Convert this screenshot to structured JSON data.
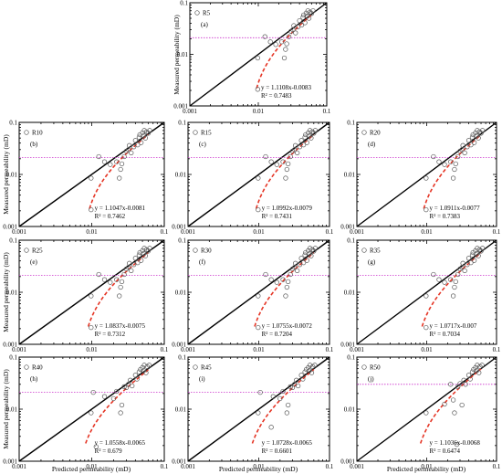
{
  "figure": {
    "xlabel": "Predicted permeability (mD)",
    "ylabel": "Measured permeability (mD)"
  },
  "chart_data": [
    {
      "type": "scatter",
      "legend": "R5",
      "panel": "(a)",
      "equation": "y = 1.1108x-0.0083",
      "r2": "R² = 0.7483",
      "xlim": [
        0.001,
        0.1
      ],
      "ylim": [
        0.001,
        0.1
      ],
      "x_scale": "log",
      "y_scale": "log",
      "x_ticks": [
        "0.001",
        "0.01",
        "0.1"
      ],
      "y_ticks": [
        "0.001",
        "0.01",
        "0.1"
      ],
      "threshold_y": 0.021,
      "fit": {
        "slope": 1.1108,
        "intercept": -0.0083
      },
      "points": [
        [
          0.0098,
          0.0021
        ],
        [
          0.0098,
          0.0085
        ],
        [
          0.0125,
          0.022
        ],
        [
          0.015,
          0.0175
        ],
        [
          0.018,
          0.0155
        ],
        [
          0.022,
          0.0175
        ],
        [
          0.024,
          0.0085
        ],
        [
          0.025,
          0.0125
        ],
        [
          0.026,
          0.016
        ],
        [
          0.028,
          0.022
        ],
        [
          0.03,
          0.028
        ],
        [
          0.032,
          0.03
        ],
        [
          0.033,
          0.036
        ],
        [
          0.035,
          0.026
        ],
        [
          0.038,
          0.034
        ],
        [
          0.04,
          0.045
        ],
        [
          0.043,
          0.037
        ],
        [
          0.045,
          0.052
        ],
        [
          0.046,
          0.058
        ],
        [
          0.048,
          0.041
        ],
        [
          0.05,
          0.063
        ],
        [
          0.052,
          0.055
        ],
        [
          0.053,
          0.07
        ],
        [
          0.055,
          0.05
        ],
        [
          0.057,
          0.066
        ],
        [
          0.06,
          0.062
        ],
        [
          0.063,
          0.07
        ]
      ]
    },
    {
      "type": "scatter",
      "legend": "R10",
      "panel": "(b)",
      "equation": "y = 1.1047x-0.0081",
      "r2": "R² = 0.7462",
      "xlim": [
        0.001,
        0.1
      ],
      "ylim": [
        0.001,
        0.1
      ],
      "x_scale": "log",
      "y_scale": "log",
      "x_ticks": [
        "0.001",
        "0.01",
        "0.1"
      ],
      "y_ticks": [
        "0.001",
        "0.01",
        "0.1"
      ],
      "threshold_y": 0.021,
      "fit": {
        "slope": 1.1047,
        "intercept": -0.0081
      },
      "points": [
        [
          0.0098,
          0.0021
        ],
        [
          0.0098,
          0.0085
        ],
        [
          0.0125,
          0.022
        ],
        [
          0.015,
          0.0175
        ],
        [
          0.018,
          0.0155
        ],
        [
          0.022,
          0.0175
        ],
        [
          0.024,
          0.0085
        ],
        [
          0.025,
          0.0125
        ],
        [
          0.026,
          0.016
        ],
        [
          0.028,
          0.022
        ],
        [
          0.03,
          0.028
        ],
        [
          0.032,
          0.03
        ],
        [
          0.033,
          0.036
        ],
        [
          0.035,
          0.026
        ],
        [
          0.038,
          0.034
        ],
        [
          0.04,
          0.045
        ],
        [
          0.043,
          0.037
        ],
        [
          0.045,
          0.052
        ],
        [
          0.046,
          0.058
        ],
        [
          0.048,
          0.041
        ],
        [
          0.05,
          0.063
        ],
        [
          0.052,
          0.055
        ],
        [
          0.053,
          0.07
        ],
        [
          0.055,
          0.05
        ],
        [
          0.057,
          0.066
        ],
        [
          0.06,
          0.062
        ],
        [
          0.063,
          0.07
        ]
      ]
    },
    {
      "type": "scatter",
      "legend": "R15",
      "panel": "(c)",
      "equation": "y = 1.0992x-0.0079",
      "r2": "R² = 0.7431",
      "xlim": [
        0.001,
        0.1
      ],
      "ylim": [
        0.001,
        0.1
      ],
      "x_scale": "log",
      "y_scale": "log",
      "x_ticks": [
        "0.001",
        "0.01",
        "0.1"
      ],
      "y_ticks": [
        "0.001",
        "0.01",
        "0.1"
      ],
      "threshold_y": 0.021,
      "fit": {
        "slope": 1.0992,
        "intercept": -0.0079
      },
      "points": [
        [
          0.0098,
          0.0021
        ],
        [
          0.0098,
          0.0085
        ],
        [
          0.0125,
          0.022
        ],
        [
          0.015,
          0.0175
        ],
        [
          0.018,
          0.0155
        ],
        [
          0.022,
          0.0175
        ],
        [
          0.024,
          0.0085
        ],
        [
          0.025,
          0.0125
        ],
        [
          0.026,
          0.016
        ],
        [
          0.028,
          0.022
        ],
        [
          0.03,
          0.028
        ],
        [
          0.032,
          0.03
        ],
        [
          0.033,
          0.036
        ],
        [
          0.035,
          0.026
        ],
        [
          0.038,
          0.034
        ],
        [
          0.04,
          0.045
        ],
        [
          0.043,
          0.037
        ],
        [
          0.045,
          0.052
        ],
        [
          0.046,
          0.058
        ],
        [
          0.048,
          0.041
        ],
        [
          0.05,
          0.063
        ],
        [
          0.052,
          0.055
        ],
        [
          0.053,
          0.07
        ],
        [
          0.055,
          0.05
        ],
        [
          0.057,
          0.066
        ],
        [
          0.06,
          0.062
        ],
        [
          0.063,
          0.07
        ]
      ]
    },
    {
      "type": "scatter",
      "legend": "R20",
      "panel": "(d)",
      "equation": "y = 1.0911x-0.0077",
      "r2": "R² = 0.7383",
      "xlim": [
        0.001,
        0.1
      ],
      "ylim": [
        0.001,
        0.1
      ],
      "x_scale": "log",
      "y_scale": "log",
      "x_ticks": [
        "0.001",
        "0.01",
        "0.1"
      ],
      "y_ticks": [
        "0.001",
        "0.01",
        "0.1"
      ],
      "threshold_y": 0.021,
      "fit": {
        "slope": 1.0911,
        "intercept": -0.0077
      },
      "points": [
        [
          0.0098,
          0.0021
        ],
        [
          0.0098,
          0.0085
        ],
        [
          0.0125,
          0.022
        ],
        [
          0.015,
          0.0175
        ],
        [
          0.018,
          0.0155
        ],
        [
          0.022,
          0.0175
        ],
        [
          0.024,
          0.0085
        ],
        [
          0.025,
          0.0125
        ],
        [
          0.026,
          0.016
        ],
        [
          0.028,
          0.022
        ],
        [
          0.03,
          0.028
        ],
        [
          0.032,
          0.03
        ],
        [
          0.033,
          0.036
        ],
        [
          0.035,
          0.026
        ],
        [
          0.038,
          0.034
        ],
        [
          0.04,
          0.045
        ],
        [
          0.043,
          0.037
        ],
        [
          0.045,
          0.052
        ],
        [
          0.046,
          0.058
        ],
        [
          0.048,
          0.041
        ],
        [
          0.05,
          0.063
        ],
        [
          0.052,
          0.055
        ],
        [
          0.053,
          0.07
        ],
        [
          0.055,
          0.05
        ],
        [
          0.057,
          0.066
        ],
        [
          0.06,
          0.062
        ],
        [
          0.063,
          0.07
        ]
      ]
    },
    {
      "type": "scatter",
      "legend": "R25",
      "panel": "(e)",
      "equation": "y = 1.0837x-0.0075",
      "r2": "R² = 0.7312",
      "xlim": [
        0.001,
        0.1
      ],
      "ylim": [
        0.001,
        0.1
      ],
      "x_scale": "log",
      "y_scale": "log",
      "x_ticks": [
        "0.001",
        "0.01",
        "0.1"
      ],
      "y_ticks": [
        "0.001",
        "0.01",
        "0.1"
      ],
      "threshold_y": 0.021,
      "fit": {
        "slope": 1.0837,
        "intercept": -0.0075
      },
      "points": [
        [
          0.0098,
          0.0021
        ],
        [
          0.0098,
          0.0085
        ],
        [
          0.0125,
          0.022
        ],
        [
          0.015,
          0.0175
        ],
        [
          0.018,
          0.0155
        ],
        [
          0.022,
          0.0175
        ],
        [
          0.024,
          0.0085
        ],
        [
          0.025,
          0.0125
        ],
        [
          0.026,
          0.016
        ],
        [
          0.028,
          0.022
        ],
        [
          0.03,
          0.028
        ],
        [
          0.032,
          0.03
        ],
        [
          0.033,
          0.036
        ],
        [
          0.035,
          0.026
        ],
        [
          0.038,
          0.034
        ],
        [
          0.04,
          0.045
        ],
        [
          0.043,
          0.037
        ],
        [
          0.045,
          0.052
        ],
        [
          0.046,
          0.058
        ],
        [
          0.048,
          0.041
        ],
        [
          0.05,
          0.063
        ],
        [
          0.052,
          0.055
        ],
        [
          0.053,
          0.07
        ],
        [
          0.055,
          0.05
        ],
        [
          0.057,
          0.066
        ],
        [
          0.06,
          0.062
        ],
        [
          0.063,
          0.07
        ]
      ]
    },
    {
      "type": "scatter",
      "legend": "R30",
      "panel": "(f)",
      "equation": "y = 1.0755x-0.0072",
      "r2": "R² = 0.7204",
      "xlim": [
        0.001,
        0.1
      ],
      "ylim": [
        0.001,
        0.1
      ],
      "x_scale": "log",
      "y_scale": "log",
      "x_ticks": [
        "0.001",
        "0.01",
        "0.1"
      ],
      "y_ticks": [
        "0.001",
        "0.01",
        "0.1"
      ],
      "threshold_y": 0.021,
      "fit": {
        "slope": 1.0755,
        "intercept": -0.0072
      },
      "points": [
        [
          0.0098,
          0.0021
        ],
        [
          0.0098,
          0.0085
        ],
        [
          0.0125,
          0.022
        ],
        [
          0.015,
          0.0175
        ],
        [
          0.018,
          0.0155
        ],
        [
          0.022,
          0.0175
        ],
        [
          0.024,
          0.0085
        ],
        [
          0.025,
          0.0125
        ],
        [
          0.026,
          0.016
        ],
        [
          0.028,
          0.022
        ],
        [
          0.03,
          0.028
        ],
        [
          0.032,
          0.03
        ],
        [
          0.033,
          0.036
        ],
        [
          0.035,
          0.026
        ],
        [
          0.038,
          0.034
        ],
        [
          0.04,
          0.045
        ],
        [
          0.043,
          0.037
        ],
        [
          0.045,
          0.052
        ],
        [
          0.046,
          0.058
        ],
        [
          0.048,
          0.041
        ],
        [
          0.05,
          0.063
        ],
        [
          0.052,
          0.055
        ],
        [
          0.053,
          0.07
        ],
        [
          0.055,
          0.05
        ],
        [
          0.057,
          0.066
        ],
        [
          0.06,
          0.062
        ],
        [
          0.063,
          0.07
        ]
      ]
    },
    {
      "type": "scatter",
      "legend": "R35",
      "panel": "(g)",
      "equation": "y = 1.0717x-0.007",
      "r2": "R² = 0.7034",
      "xlim": [
        0.001,
        0.1
      ],
      "ylim": [
        0.001,
        0.1
      ],
      "x_scale": "log",
      "y_scale": "log",
      "x_ticks": [
        "0.001",
        "0.01",
        "0.1"
      ],
      "y_ticks": [
        "0.001",
        "0.01",
        "0.1"
      ],
      "threshold_y": 0.021,
      "fit": {
        "slope": 1.0717,
        "intercept": -0.007
      },
      "points": [
        [
          0.0098,
          0.0021
        ],
        [
          0.0098,
          0.0085
        ],
        [
          0.0125,
          0.022
        ],
        [
          0.015,
          0.0175
        ],
        [
          0.018,
          0.0155
        ],
        [
          0.022,
          0.0175
        ],
        [
          0.024,
          0.0085
        ],
        [
          0.025,
          0.0125
        ],
        [
          0.026,
          0.016
        ],
        [
          0.028,
          0.022
        ],
        [
          0.03,
          0.028
        ],
        [
          0.032,
          0.03
        ],
        [
          0.033,
          0.036
        ],
        [
          0.035,
          0.026
        ],
        [
          0.038,
          0.034
        ],
        [
          0.04,
          0.045
        ],
        [
          0.043,
          0.037
        ],
        [
          0.045,
          0.052
        ],
        [
          0.046,
          0.058
        ],
        [
          0.048,
          0.041
        ],
        [
          0.05,
          0.063
        ],
        [
          0.052,
          0.055
        ],
        [
          0.053,
          0.07
        ],
        [
          0.055,
          0.05
        ],
        [
          0.057,
          0.066
        ],
        [
          0.06,
          0.062
        ],
        [
          0.063,
          0.07
        ]
      ]
    },
    {
      "type": "scatter",
      "legend": "R40",
      "panel": "(h)",
      "equation": "y = 1.0558x-0.0065",
      "r2": "R² = 0.679",
      "xlim": [
        0.001,
        0.1
      ],
      "ylim": [
        0.001,
        0.1
      ],
      "x_scale": "log",
      "y_scale": "log",
      "x_ticks": [
        "0.001",
        "0.01",
        "0.1"
      ],
      "y_ticks": [
        "0.001",
        "0.01",
        "0.1"
      ],
      "threshold_y": 0.021,
      "fit": {
        "slope": 1.0558,
        "intercept": -0.0065
      },
      "points": [
        [
          0.0098,
          0.0085
        ],
        [
          0.0105,
          0.021
        ],
        [
          0.0115,
          0.0019
        ],
        [
          0.015,
          0.0175
        ],
        [
          0.02,
          0.016
        ],
        [
          0.022,
          0.022
        ],
        [
          0.025,
          0.0085
        ],
        [
          0.026,
          0.012
        ],
        [
          0.028,
          0.027
        ],
        [
          0.03,
          0.026
        ],
        [
          0.032,
          0.03
        ],
        [
          0.034,
          0.036
        ],
        [
          0.036,
          0.028
        ],
        [
          0.04,
          0.045
        ],
        [
          0.042,
          0.038
        ],
        [
          0.045,
          0.052
        ],
        [
          0.047,
          0.058
        ],
        [
          0.05,
          0.063
        ],
        [
          0.052,
          0.055
        ],
        [
          0.053,
          0.07
        ],
        [
          0.056,
          0.05
        ],
        [
          0.058,
          0.066
        ],
        [
          0.062,
          0.07
        ]
      ]
    },
    {
      "type": "scatter",
      "legend": "R45",
      "panel": "(i)",
      "equation": "y = 1.0728x-0.0065",
      "r2": "R² = 0.6601",
      "xlim": [
        0.001,
        0.1
      ],
      "ylim": [
        0.001,
        0.1
      ],
      "x_scale": "log",
      "y_scale": "log",
      "x_ticks": [
        "0.001",
        "0.01",
        "0.1"
      ],
      "y_ticks": [
        "0.001",
        "0.01",
        "0.1"
      ],
      "threshold_y": 0.021,
      "fit": {
        "slope": 1.0728,
        "intercept": -0.0065
      },
      "points": [
        [
          0.0098,
          0.0085
        ],
        [
          0.0105,
          0.021
        ],
        [
          0.015,
          0.0045
        ],
        [
          0.016,
          0.0175
        ],
        [
          0.02,
          0.016
        ],
        [
          0.022,
          0.022
        ],
        [
          0.025,
          0.0085
        ],
        [
          0.026,
          0.012
        ],
        [
          0.028,
          0.027
        ],
        [
          0.03,
          0.026
        ],
        [
          0.032,
          0.03
        ],
        [
          0.034,
          0.036
        ],
        [
          0.036,
          0.028
        ],
        [
          0.04,
          0.045
        ],
        [
          0.042,
          0.038
        ],
        [
          0.045,
          0.052
        ],
        [
          0.047,
          0.058
        ],
        [
          0.05,
          0.063
        ],
        [
          0.052,
          0.055
        ],
        [
          0.053,
          0.07
        ],
        [
          0.056,
          0.05
        ],
        [
          0.058,
          0.066
        ],
        [
          0.062,
          0.07
        ]
      ]
    },
    {
      "type": "scatter",
      "legend": "R50",
      "panel": "(j)",
      "equation": "y = 1.1036x-0.0068",
      "r2": "R² = 0.6474",
      "xlim": [
        0.001,
        0.1
      ],
      "ylim": [
        0.001,
        0.1
      ],
      "x_scale": "log",
      "y_scale": "log",
      "x_ticks": [
        "0.001",
        "0.01",
        "0.1"
      ],
      "y_ticks": [
        "0.001",
        "0.01",
        "0.1"
      ],
      "threshold_y": 0.03,
      "fit": {
        "slope": 1.1036,
        "intercept": -0.0068
      },
      "points": [
        [
          0.0098,
          0.0085
        ],
        [
          0.018,
          0.0125
        ],
        [
          0.022,
          0.03
        ],
        [
          0.024,
          0.015
        ],
        [
          0.025,
          0.0085
        ],
        [
          0.027,
          0.0021
        ],
        [
          0.028,
          0.027
        ],
        [
          0.03,
          0.031
        ],
        [
          0.032,
          0.012
        ],
        [
          0.034,
          0.036
        ],
        [
          0.036,
          0.03
        ],
        [
          0.04,
          0.045
        ],
        [
          0.042,
          0.038
        ],
        [
          0.045,
          0.052
        ],
        [
          0.047,
          0.058
        ],
        [
          0.05,
          0.063
        ],
        [
          0.052,
          0.055
        ],
        [
          0.053,
          0.07
        ],
        [
          0.056,
          0.05
        ],
        [
          0.058,
          0.066
        ],
        [
          0.062,
          0.07
        ]
      ]
    }
  ]
}
